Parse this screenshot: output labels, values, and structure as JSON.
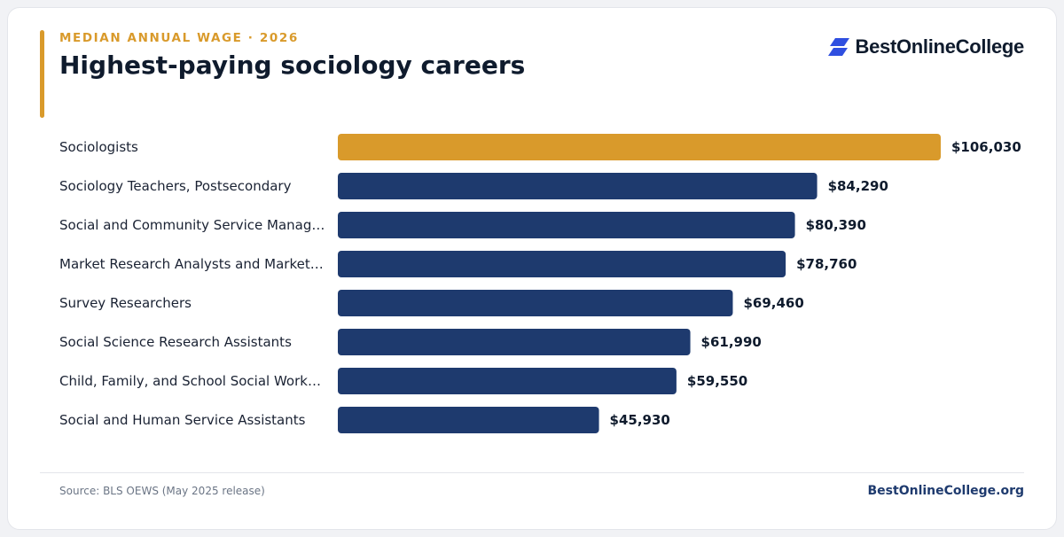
{
  "header": {
    "eyebrow": "MEDIAN ANNUAL WAGE · 2026",
    "title": "Highest-paying sociology careers"
  },
  "brand": {
    "logo_text": "BestOnlineCollege",
    "icon": "stacked-parallelogram-logo-icon",
    "logo_color": "#2f4fe0"
  },
  "footer": {
    "source": "Source: BLS OEWS (May 2025 release)",
    "site": "BestOnlineCollege.org"
  },
  "colors": {
    "highlight": "#d99a2b",
    "bar": "#1e3a6e",
    "label": "#1a2233",
    "value": "#0f1b2d"
  },
  "chart_data": {
    "type": "bar",
    "orientation": "horizontal",
    "title": "Highest-paying sociology careers",
    "subtitle": "MEDIAN ANNUAL WAGE · 2026",
    "categories": [
      "Sociologists",
      "Sociology Teachers, Postsecondary",
      "Social and Community Service Manag…",
      "Market Research Analysts and Market…",
      "Survey Researchers",
      "Social Science Research Assistants",
      "Child, Family, and School Social Work…",
      "Social and Human Service Assistants"
    ],
    "values": [
      106030,
      84290,
      80390,
      78760,
      69460,
      61990,
      59550,
      45930
    ],
    "value_labels": [
      "$106,030",
      "$84,290",
      "$80,390",
      "$78,760",
      "$69,460",
      "$61,990",
      "$59,550",
      "$45,930"
    ],
    "highlighted_index": 0,
    "xlim": [
      0,
      106030
    ],
    "grid": false,
    "legend": "none"
  }
}
